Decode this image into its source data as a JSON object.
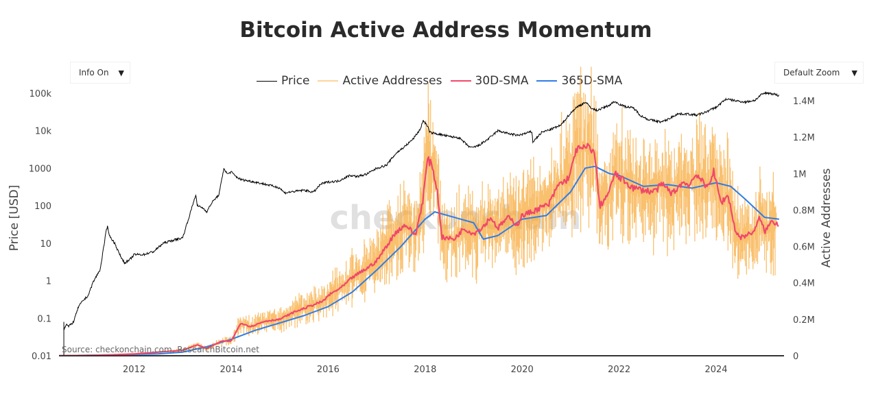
{
  "title": "Bitcoin Active Address Momentum",
  "controls": {
    "info_dropdown": {
      "label": "Info On",
      "arrow": "▼"
    },
    "zoom_dropdown": {
      "label": "Default Zoom",
      "arrow": "▼"
    }
  },
  "watermark": "checkonchain",
  "source": "Source: checkonchain.com, ResearchBitcoin.net",
  "chart_data": {
    "type": "line",
    "title": "Bitcoin Active Address Momentum",
    "xlabel": "",
    "ylabel_left": "Price [USD]",
    "ylabel_right": "Active Addresses",
    "x_range": [
      2010.45,
      2025.4
    ],
    "x_ticks": [
      "2012",
      "2014",
      "2016",
      "2018",
      "2020",
      "2022",
      "2024"
    ],
    "x_tick_values": [
      2012,
      2014,
      2016,
      2018,
      2020,
      2022,
      2024
    ],
    "y_left": {
      "scale": "log",
      "range": [
        0.01,
        100000
      ],
      "ticks": [
        "0.01",
        "0.1",
        "1",
        "10",
        "100",
        "1000",
        "10k",
        "100k"
      ],
      "tick_values": [
        0.01,
        0.1,
        1,
        10,
        100,
        1000,
        10000,
        100000
      ]
    },
    "y_right": {
      "scale": "linear",
      "range": [
        0,
        1400000
      ],
      "ticks": [
        "0",
        "0.2M",
        "0.4M",
        "0.6M",
        "0.8M",
        "1M",
        "1.2M",
        "1.4M"
      ],
      "tick_values": [
        0,
        200000,
        400000,
        600000,
        800000,
        1000000,
        1200000,
        1400000
      ]
    },
    "legend_position": "top-center",
    "grid": false,
    "series": [
      {
        "name": "Price",
        "axis": "left",
        "color": "#000000",
        "x": [
          2010.55,
          2010.6,
          2010.65,
          2010.75,
          2010.85,
          2010.95,
          2011.05,
          2011.15,
          2011.3,
          2011.42,
          2011.45,
          2011.5,
          2011.6,
          2011.7,
          2011.8,
          2011.9,
          2012.0,
          2012.2,
          2012.4,
          2012.6,
          2012.8,
          2013.0,
          2013.15,
          2013.27,
          2013.3,
          2013.4,
          2013.5,
          2013.6,
          2013.75,
          2013.85,
          2013.92,
          2014.0,
          2014.1,
          2014.2,
          2014.4,
          2014.6,
          2014.8,
          2015.0,
          2015.1,
          2015.3,
          2015.5,
          2015.7,
          2015.85,
          2016.0,
          2016.2,
          2016.45,
          2016.6,
          2016.8,
          2017.0,
          2017.2,
          2017.4,
          2017.6,
          2017.75,
          2017.9,
          2017.96,
          2018.05,
          2018.1,
          2018.3,
          2018.5,
          2018.7,
          2018.88,
          2018.96,
          2019.1,
          2019.3,
          2019.5,
          2019.7,
          2019.9,
          2020.0,
          2020.2,
          2020.22,
          2020.4,
          2020.6,
          2020.8,
          2020.95,
          2021.1,
          2021.3,
          2021.45,
          2021.55,
          2021.8,
          2021.9,
          2022.1,
          2022.3,
          2022.45,
          2022.6,
          2022.87,
          2023.0,
          2023.2,
          2023.4,
          2023.6,
          2023.75,
          2023.9,
          2024.0,
          2024.2,
          2024.4,
          2024.6,
          2024.8,
          2024.95,
          2025.05,
          2025.2,
          2025.3
        ],
        "y": [
          0.05,
          0.07,
          0.06,
          0.08,
          0.2,
          0.3,
          0.4,
          0.9,
          2,
          20,
          28,
          15,
          10,
          5,
          3,
          3.5,
          5,
          5,
          6,
          10,
          12,
          14,
          60,
          200,
          100,
          90,
          70,
          120,
          200,
          1000,
          700,
          800,
          600,
          500,
          450,
          400,
          350,
          300,
          220,
          240,
          260,
          230,
          380,
          430,
          450,
          650,
          600,
          700,
          1000,
          1200,
          2500,
          4000,
          6000,
          11000,
          19000,
          13000,
          9000,
          8000,
          7000,
          6500,
          4000,
          3500,
          4000,
          6000,
          10000,
          8500,
          7500,
          8000,
          9500,
          5000,
          9000,
          11000,
          14000,
          25000,
          40000,
          58000,
          38000,
          35000,
          48000,
          60000,
          45000,
          40000,
          25000,
          20000,
          17000,
          20000,
          28000,
          28000,
          26000,
          30000,
          37000,
          42000,
          70000,
          63000,
          58000,
          65000,
          95000,
          102000,
          95000,
          85000
        ]
      },
      {
        "name": "Active Addresses",
        "axis": "right",
        "color": "#f7a531",
        "note": "daily series, oscillating around the 30D-SMA"
      },
      {
        "name": "30D-SMA",
        "axis": "right",
        "color": "#f0476b",
        "x": [
          2010.45,
          2011.0,
          2011.5,
          2012.0,
          2012.5,
          2013.0,
          2013.3,
          2013.5,
          2013.8,
          2014.0,
          2014.2,
          2014.4,
          2014.7,
          2015.0,
          2015.3,
          2015.6,
          2015.9,
          2016.0,
          2016.3,
          2016.5,
          2016.8,
          2017.0,
          2017.2,
          2017.4,
          2017.6,
          2017.8,
          2017.95,
          2018.05,
          2018.15,
          2018.25,
          2018.35,
          2018.6,
          2018.8,
          2019.0,
          2019.2,
          2019.35,
          2019.5,
          2019.7,
          2019.9,
          2020.0,
          2020.2,
          2020.35,
          2020.55,
          2020.75,
          2020.9,
          2021.0,
          2021.1,
          2021.3,
          2021.4,
          2021.5,
          2021.6,
          2021.8,
          2021.9,
          2022.1,
          2022.3,
          2022.5,
          2022.7,
          2022.9,
          2023.1,
          2023.3,
          2023.45,
          2023.6,
          2023.8,
          2023.95,
          2024.1,
          2024.25,
          2024.4,
          2024.5,
          2024.7,
          2024.8,
          2024.9,
          2025.0,
          2025.15,
          2025.3
        ],
        "y": [
          1000,
          2000,
          5000,
          10000,
          20000,
          30000,
          60000,
          40000,
          80000,
          80000,
          180000,
          160000,
          190000,
          200000,
          240000,
          270000,
          300000,
          330000,
          380000,
          430000,
          480000,
          520000,
          600000,
          680000,
          720000,
          660000,
          850000,
          1080000,
          1040000,
          900000,
          650000,
          640000,
          700000,
          670000,
          710000,
          760000,
          700000,
          760000,
          720000,
          770000,
          790000,
          810000,
          830000,
          940000,
          960000,
          1000000,
          1130000,
          1140000,
          1150000,
          1100000,
          820000,
          900000,
          1000000,
          960000,
          920000,
          910000,
          900000,
          940000,
          890000,
          950000,
          940000,
          1000000,
          920000,
          1010000,
          840000,
          880000,
          680000,
          650000,
          670000,
          690000,
          760000,
          680000,
          740000,
          720000
        ]
      },
      {
        "name": "365D-SMA",
        "axis": "right",
        "color": "#2e7de6",
        "x": [
          2010.45,
          2011.5,
          2012.5,
          2013.0,
          2013.5,
          2014.0,
          2014.5,
          2015.0,
          2015.5,
          2016.0,
          2016.5,
          2017.0,
          2017.5,
          2018.0,
          2018.2,
          2018.6,
          2019.0,
          2019.2,
          2019.5,
          2020.0,
          2020.5,
          2021.0,
          2021.3,
          2021.5,
          2021.8,
          2022.0,
          2022.5,
          2023.0,
          2023.5,
          2024.0,
          2024.3,
          2024.6,
          2025.0,
          2025.3
        ],
        "y": [
          0,
          5000,
          10000,
          20000,
          50000,
          90000,
          140000,
          180000,
          220000,
          270000,
          350000,
          470000,
          600000,
          750000,
          790000,
          760000,
          730000,
          640000,
          660000,
          750000,
          770000,
          900000,
          1030000,
          1040000,
          1000000,
          990000,
          930000,
          940000,
          920000,
          950000,
          930000,
          860000,
          760000,
          750000
        ]
      }
    ]
  }
}
